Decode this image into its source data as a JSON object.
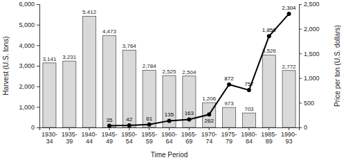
{
  "chart_data": {
    "type": "bar",
    "x_label": "Time Period",
    "y_label": "Harvest (U.S. tons)",
    "y2_label": "Price per ton (U.S. dollars)",
    "categories": [
      "1930-34",
      "1935-39",
      "1940-44",
      "1945-49",
      "1950-54",
      "1955-59",
      "1960-64",
      "1965-69",
      "1970-74",
      "1975-79",
      "1980-84",
      "1985-89",
      "1990-93"
    ],
    "series": [
      {
        "type": "bar",
        "color": "#d9d9d9",
        "values": [
          3141,
          3231,
          5412,
          4473,
          3764,
          2784,
          2525,
          2504,
          1206,
          973,
          703,
          3526,
          2772
        ],
        "value_labels": [
          "3,141",
          "3,231",
          "5,412",
          "4,473",
          "3,764",
          "2,784",
          "2,525",
          "2,504",
          "1,206",
          "973",
          "703",
          "3,526",
          "2,772"
        ]
      },
      {
        "type": "line",
        "axis": "y2",
        "color": "#000000",
        "marker": "circle",
        "values": [
          null,
          null,
          null,
          35,
          42,
          61,
          135,
          163,
          262,
          872,
          757,
          1850,
          2304
        ],
        "value_labels": [
          null,
          null,
          null,
          "35",
          "42",
          "61",
          "135",
          "163",
          "262",
          "872",
          "757",
          "1,850",
          "2,304"
        ]
      }
    ],
    "ylim": [
      0,
      6000
    ],
    "yticks": [
      0,
      {
        "value": 1000,
        "label": "1,000"
      },
      {
        "value": 2000,
        "label": "2,000"
      },
      {
        "value": 3000,
        "label": "3,000"
      },
      {
        "value": 4000,
        "label": "4,000"
      },
      {
        "value": 5000,
        "label": "5,000"
      },
      {
        "value": 6000,
        "label": "6,000"
      }
    ],
    "y2lim": [
      0,
      2500
    ],
    "y2ticks": [
      0,
      500,
      {
        "value": 1000,
        "label": "1,000"
      },
      {
        "value": 1500,
        "label": "1,500"
      },
      {
        "value": 2000,
        "label": "2,000"
      },
      {
        "value": 2500,
        "label": "2,500"
      }
    ],
    "grid": false,
    "data_labels": true
  }
}
